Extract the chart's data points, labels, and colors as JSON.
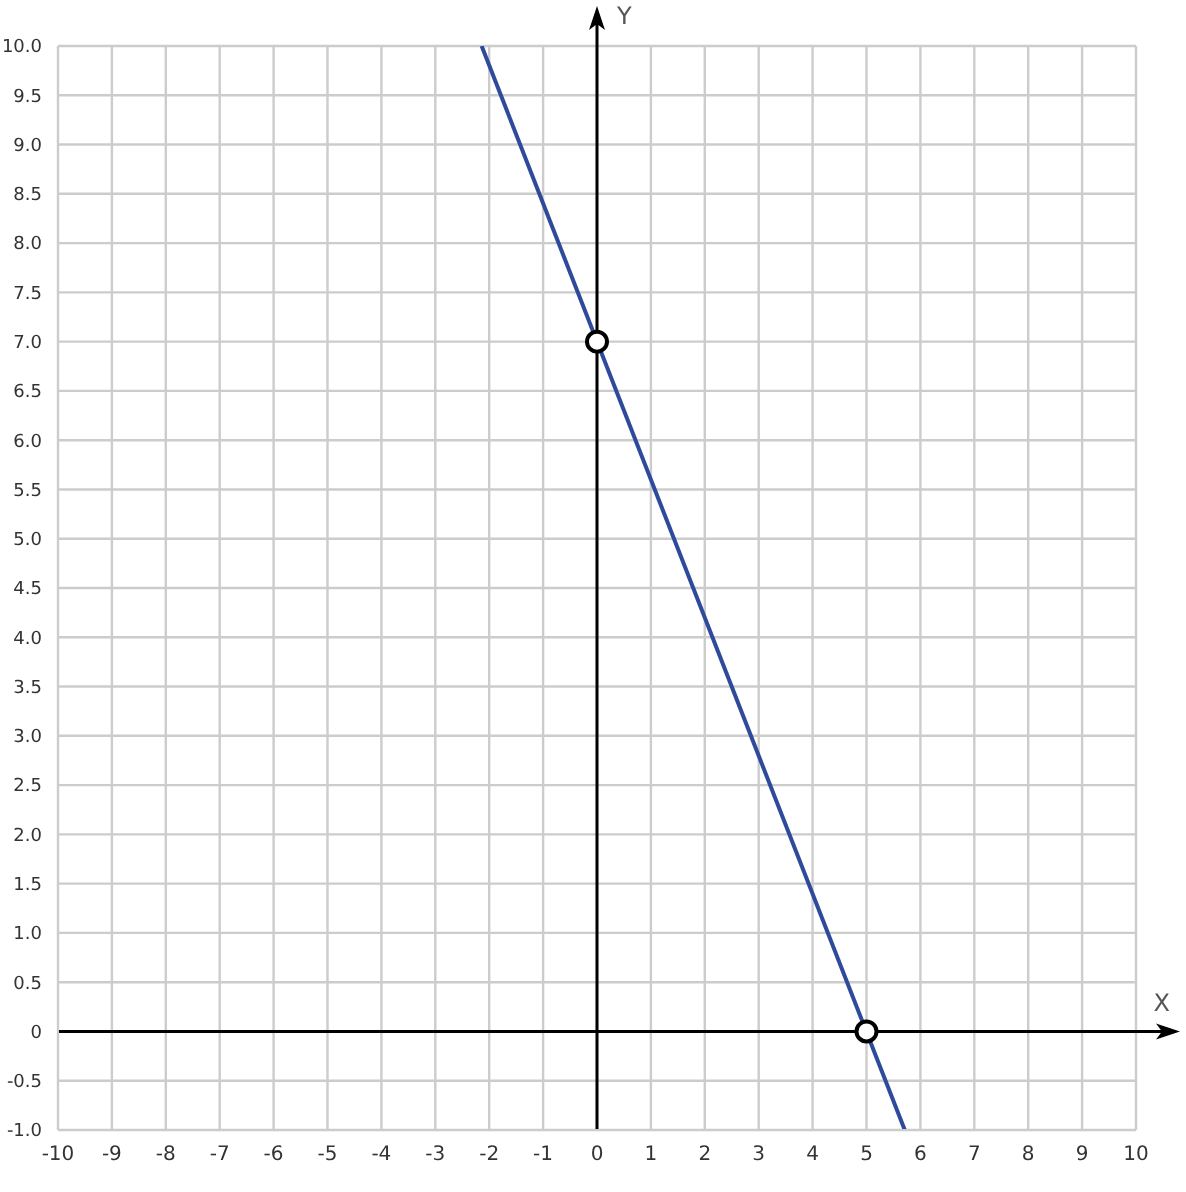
{
  "chart_data": {
    "type": "line",
    "xlabel": "X",
    "ylabel": "Y",
    "series": [
      {
        "color": "#2e4a9a",
        "x": [
          -2.14,
          5.71
        ],
        "values": [
          10,
          -1
        ],
        "marker": "none"
      },
      {
        "type": "scatter",
        "color": "#000000",
        "x": [
          0,
          5
        ],
        "values": [
          7,
          0
        ],
        "marker": "circle"
      }
    ],
    "xlim": [
      -10,
      10
    ],
    "xticks": [
      -10,
      -9,
      -8,
      -7,
      -6,
      -5,
      -4,
      -3,
      -2,
      -1,
      0,
      1,
      2,
      3,
      4,
      5,
      6,
      7,
      8,
      9,
      10
    ],
    "ylim": [
      -1,
      10
    ],
    "yticks": [
      {
        "value": -1,
        "label": "-1.0"
      },
      {
        "value": -0.5,
        "label": "-0.5"
      },
      0,
      {
        "value": 0.5,
        "label": "0.5"
      },
      {
        "value": 1,
        "label": "1.0"
      },
      {
        "value": 1.5,
        "label": "1.5"
      },
      {
        "value": 2,
        "label": "2.0"
      },
      {
        "value": 2.5,
        "label": "2.5"
      },
      {
        "value": 3,
        "label": "3.0"
      },
      {
        "value": 3.5,
        "label": "3.5"
      },
      {
        "value": 4,
        "label": "4.0"
      },
      {
        "value": 4.5,
        "label": "4.5"
      },
      {
        "value": 5,
        "label": "5.0"
      },
      {
        "value": 5.5,
        "label": "5.5"
      },
      {
        "value": 6,
        "label": "6.0"
      },
      {
        "value": 6.5,
        "label": "6.5"
      },
      {
        "value": 7,
        "label": "7.0"
      },
      {
        "value": 7.5,
        "label": "7.5"
      },
      {
        "value": 8,
        "label": "8.0"
      },
      {
        "value": 8.5,
        "label": "8.5"
      },
      {
        "value": 9,
        "label": "9.0"
      },
      {
        "value": 9.5,
        "label": "9.5"
      },
      {
        "value": 10,
        "label": "10.0"
      }
    ],
    "grid": true
  }
}
